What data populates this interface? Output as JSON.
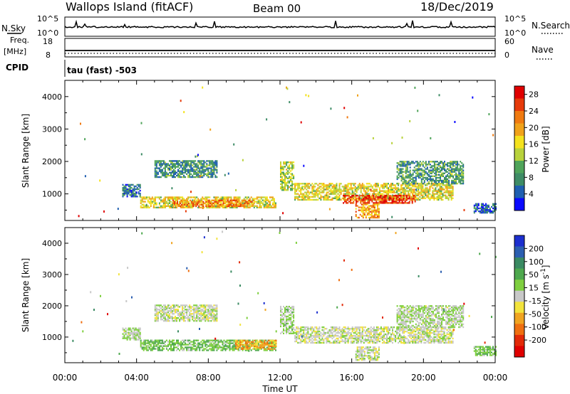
{
  "header": {
    "station": "Wallops Island (fitACF)",
    "beam": "Beam 00",
    "date": "18/Dec/2019"
  },
  "strip_labels": {
    "nsky": "N.Sky",
    "nsearch": "N.Search",
    "freq_line1": "Freq.",
    "freq_line2": "[MHz]",
    "nave": "Nave",
    "cpid": "CPID",
    "cpid_value": "tau (fast) -503",
    "nsky_ticks": [
      "10^5",
      "10^0"
    ],
    "nsearch_ticks": [
      "10^5",
      "10^0"
    ],
    "freq_ticks": [
      "18",
      "8"
    ],
    "nave_ticks": [
      "60",
      "0"
    ]
  },
  "x_axis": {
    "label": "Time UT",
    "ticks": [
      "00:00",
      "04:00",
      "08:00",
      "12:00",
      "16:00",
      "20:00",
      "00:00"
    ]
  },
  "colors": {
    "power_scale": [
      "#0a0aff",
      "#1f5fb0",
      "#3e8c66",
      "#4fa45a",
      "#b8d23c",
      "#f4e21e",
      "#f0a21a",
      "#f07a10",
      "#e63a0a",
      "#e00000"
    ],
    "velocity_scale": [
      "#1c2fcf",
      "#2c5fb0",
      "#3a8a62",
      "#4ea84e",
      "#7fcf3f",
      "#c8c8c8",
      "#f2e33c",
      "#f0a421",
      "#ef6f10",
      "#e22a08",
      "#e00000"
    ]
  },
  "chart_data": [
    {
      "type": "heatmap",
      "title": "",
      "xlabel": "",
      "ylabel": "Slant Range [km]",
      "xlim": [
        0,
        24
      ],
      "ylim": [
        180,
        4500
      ],
      "y_ticks": [
        1000,
        2000,
        3000,
        4000
      ],
      "colorbar": {
        "label": "Power [dB]",
        "ticks": [
          "4",
          "8",
          "12",
          "16",
          "20",
          "24",
          "28"
        ],
        "range": [
          0,
          30
        ]
      },
      "regions": [
        {
          "t0": 3.2,
          "t1": 4.2,
          "r0": 900,
          "r1": 1300,
          "value": 6
        },
        {
          "t0": 4.2,
          "t1": 11.8,
          "r0": 560,
          "r1": 900,
          "value": 16
        },
        {
          "t0": 6.0,
          "t1": 10.5,
          "r0": 600,
          "r1": 800,
          "value": 22
        },
        {
          "t0": 5.0,
          "t1": 8.5,
          "r0": 1500,
          "r1": 2000,
          "value": 8
        },
        {
          "t0": 12.0,
          "t1": 12.8,
          "r0": 1100,
          "r1": 2000,
          "value": 14
        },
        {
          "t0": 12.8,
          "t1": 21.6,
          "r0": 800,
          "r1": 1300,
          "value": 16
        },
        {
          "t0": 15.5,
          "t1": 19.5,
          "r0": 700,
          "r1": 950,
          "value": 26
        },
        {
          "t0": 16.2,
          "t1": 17.5,
          "r0": 250,
          "r1": 700,
          "value": 20
        },
        {
          "t0": 18.5,
          "t1": 22.2,
          "r0": 1300,
          "r1": 2000,
          "value": 9
        },
        {
          "t0": 22.8,
          "t1": 24.0,
          "r0": 400,
          "r1": 700,
          "value": 5
        }
      ]
    },
    {
      "type": "heatmap",
      "title": "",
      "xlabel": "Time UT",
      "ylabel": "Slant Range [km]",
      "xlim": [
        0,
        24
      ],
      "ylim": [
        180,
        4500
      ],
      "y_ticks": [
        1000,
        2000,
        3000,
        4000
      ],
      "colorbar": {
        "label": "Velocity [m s^-1]",
        "ticks": [
          "200",
          "100",
          "50",
          "15",
          "-15",
          "-50",
          "-100",
          "-200"
        ],
        "range": [
          -250,
          250
        ]
      },
      "regions": [
        {
          "t0": 3.2,
          "t1": 4.2,
          "r0": 900,
          "r1": 1300,
          "value": 20
        },
        {
          "t0": 4.2,
          "t1": 11.8,
          "r0": 560,
          "r1": 900,
          "value": 60
        },
        {
          "t0": 9.5,
          "t1": 11.8,
          "r0": 600,
          "r1": 900,
          "value": -90
        },
        {
          "t0": 5.0,
          "t1": 8.5,
          "r0": 1500,
          "r1": 2000,
          "value": 5
        },
        {
          "t0": 12.0,
          "t1": 12.8,
          "r0": 1100,
          "r1": 2000,
          "value": 30
        },
        {
          "t0": 12.8,
          "t1": 21.6,
          "r0": 800,
          "r1": 1300,
          "value": 0
        },
        {
          "t0": 16.2,
          "t1": 17.5,
          "r0": 250,
          "r1": 700,
          "value": 5
        },
        {
          "t0": 18.5,
          "t1": 22.2,
          "r0": 1300,
          "r1": 2000,
          "value": 20
        },
        {
          "t0": 22.8,
          "t1": 24.0,
          "r0": 400,
          "r1": 700,
          "value": 60
        }
      ]
    }
  ]
}
